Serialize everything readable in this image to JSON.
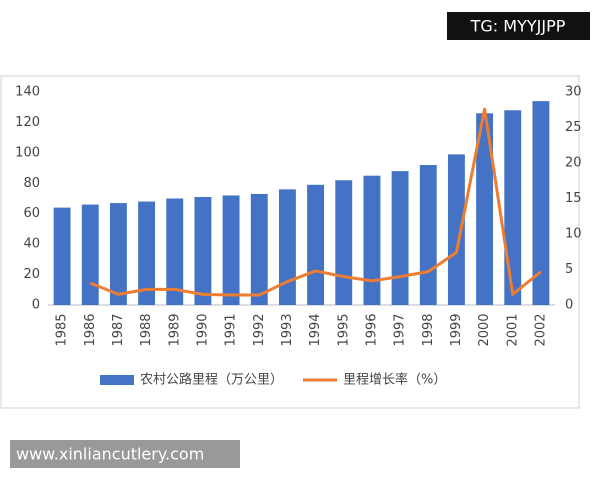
{
  "watermarks": [
    "TG: MYYJJPP",
    "www.xinliancutlery.com"
  ],
  "chart_data": {
    "type": "bar",
    "categories": [
      "1985",
      "1986",
      "1987",
      "1988",
      "1989",
      "1990",
      "1991",
      "1992",
      "1993",
      "1994",
      "1995",
      "1996",
      "1997",
      "1998",
      "1999",
      "2000",
      "2001",
      "2002"
    ],
    "series": [
      {
        "name": "农村公路里程（万公里）",
        "color": "#4472c4",
        "type": "bar",
        "values": [
          64,
          66,
          67,
          68,
          70,
          71,
          72,
          73,
          76,
          79,
          82,
          85,
          88,
          92,
          99,
          126,
          128,
          134
        ]
      },
      {
        "name": "里程增长率（%）",
        "color": "#ed7d31",
        "type": "line",
        "axis": "y2",
        "values": [
          null,
          3.1,
          1.5,
          2.2,
          2.2,
          1.5,
          1.4,
          1.4,
          3.3,
          4.8,
          4.0,
          3.4,
          4.0,
          4.7,
          7.4,
          27.6,
          1.5,
          4.7
        ]
      }
    ],
    "ylim": [
      0,
      140
    ],
    "yticks": [
      0,
      20,
      40,
      60,
      80,
      100,
      120,
      140
    ],
    "y2lim": [
      0,
      30
    ],
    "y2ticks": [
      0,
      5,
      10,
      15,
      20,
      25,
      30
    ],
    "grid": false,
    "legend": "bottom"
  }
}
